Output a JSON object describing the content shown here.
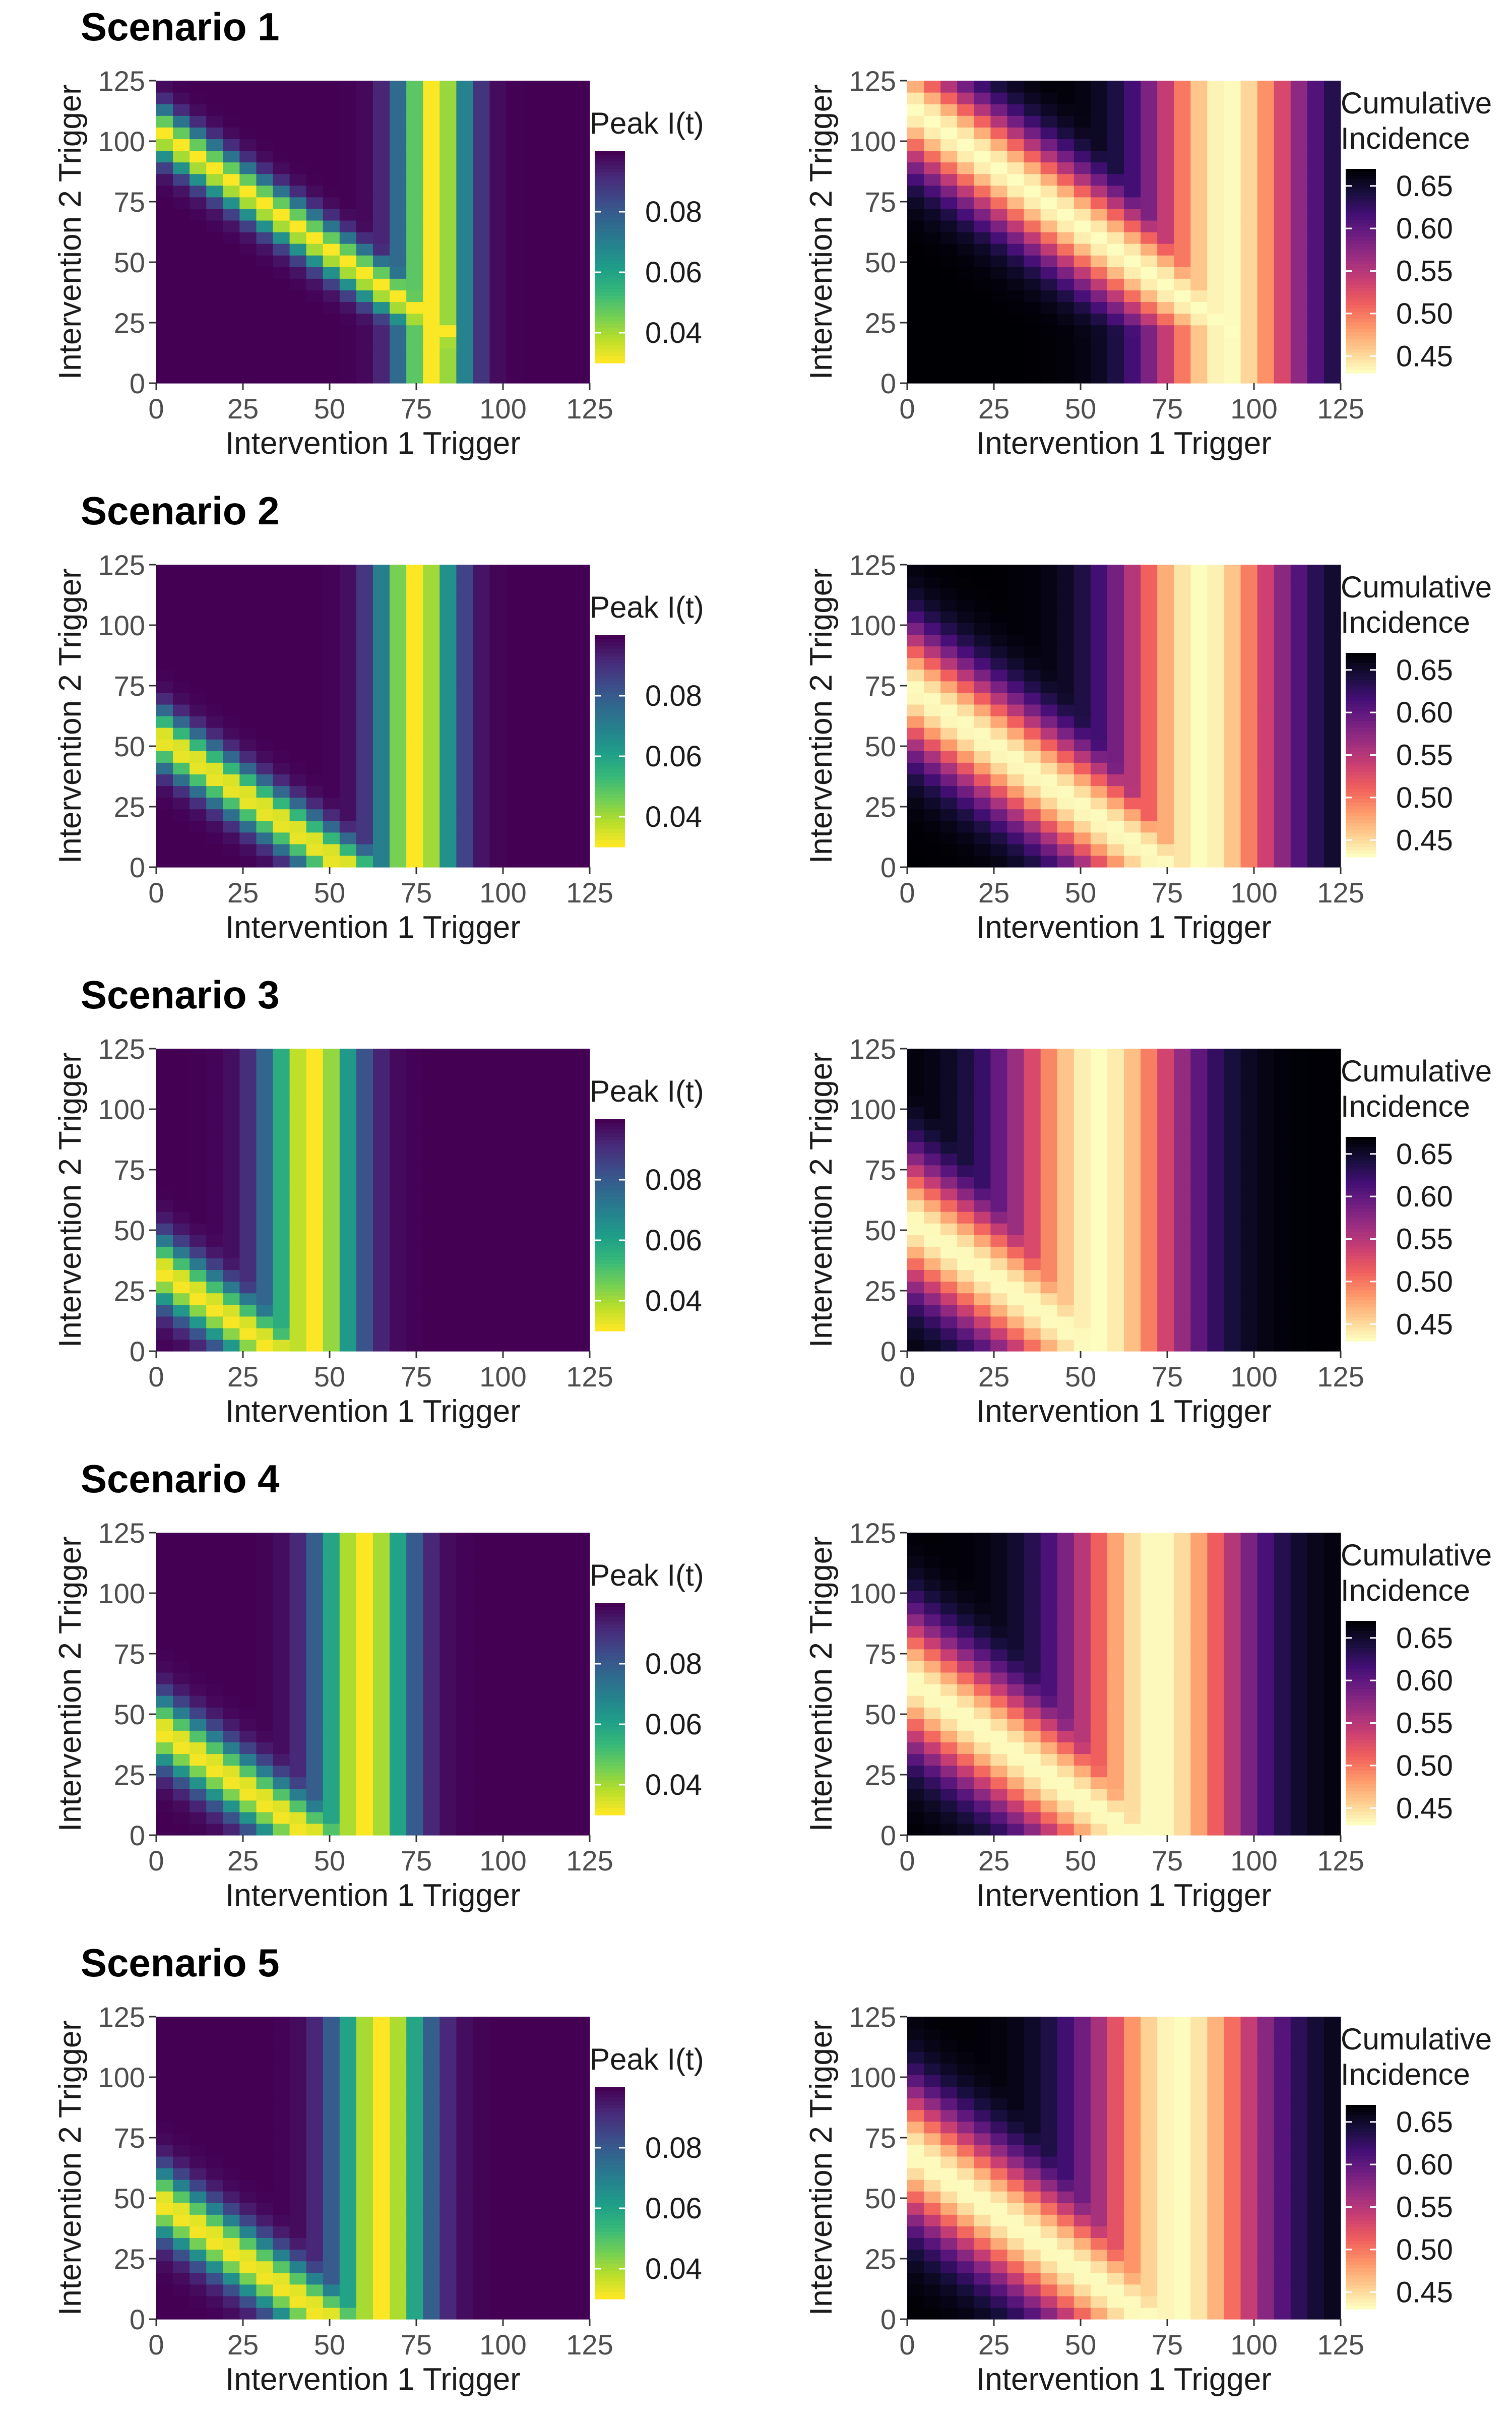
{
  "chart_data": [
    {
      "type": "heatmap",
      "scenario": "Scenario 1",
      "panels": [
        {
          "metric": "peak",
          "colormap": "viridis",
          "legend_title": [
            "Peak I(t)"
          ],
          "legend_ticks": [
            "0.04",
            "0.06",
            "0.08"
          ],
          "range": [
            0.03,
            0.1
          ],
          "vertical_band": 80,
          "diagonal_sum": 105,
          "band_width": 10
        },
        {
          "metric": "cumulative",
          "colormap": "magma",
          "legend_title": [
            "Cumulative",
            "Incidence"
          ],
          "legend_ticks": [
            "0.45",
            "0.50",
            "0.55",
            "0.60",
            "0.65"
          ],
          "range": [
            0.43,
            0.67
          ],
          "vertical_band": 92,
          "diagonal_sum": 115,
          "band_width": 22
        }
      ]
    },
    {
      "type": "heatmap",
      "scenario": "Scenario 2",
      "panels": [
        {
          "metric": "peak",
          "colormap": "viridis",
          "legend_title": [
            "Peak I(t)"
          ],
          "legend_ticks": [
            "0.04",
            "0.06",
            "0.08"
          ],
          "range": [
            0.03,
            0.1
          ],
          "vertical_band": 75,
          "diagonal_sum": 55,
          "band_width": 11
        },
        {
          "metric": "cumulative",
          "colormap": "magma",
          "legend_title": [
            "Cumulative",
            "Incidence"
          ],
          "legend_ticks": [
            "0.45",
            "0.50",
            "0.55",
            "0.60",
            "0.65"
          ],
          "range": [
            0.43,
            0.67
          ],
          "vertical_band": 85,
          "diagonal_sum": 75,
          "band_width": 24
        }
      ]
    },
    {
      "type": "heatmap",
      "scenario": "Scenario 3",
      "panels": [
        {
          "metric": "peak",
          "colormap": "viridis",
          "legend_title": [
            "Peak I(t)"
          ],
          "legend_ticks": [
            "0.04",
            "0.06",
            "0.08"
          ],
          "range": [
            0.03,
            0.1
          ],
          "vertical_band": 45,
          "diagonal_sum": 35,
          "band_width": 13
        },
        {
          "metric": "cumulative",
          "colormap": "magma",
          "legend_title": [
            "Cumulative",
            "Incidence"
          ],
          "legend_ticks": [
            "0.45",
            "0.50",
            "0.55",
            "0.60",
            "0.65"
          ],
          "range": [
            0.43,
            0.67
          ],
          "vertical_band": 55,
          "diagonal_sum": 55,
          "band_width": 26
        }
      ]
    },
    {
      "type": "heatmap",
      "scenario": "Scenario 4",
      "panels": [
        {
          "metric": "peak",
          "colormap": "viridis",
          "legend_title": [
            "Peak I(t)"
          ],
          "legend_ticks": [
            "0.04",
            "0.06",
            "0.08"
          ],
          "range": [
            0.03,
            0.1
          ],
          "vertical_band": 60,
          "diagonal_sum": 45,
          "band_width": 13
        },
        {
          "metric": "cumulative",
          "colormap": "magma",
          "legend_title": [
            "Cumulative",
            "Incidence"
          ],
          "legend_ticks": [
            "0.45",
            "0.50",
            "0.55",
            "0.60",
            "0.65"
          ],
          "range": [
            0.43,
            0.67
          ],
          "vertical_band": 72,
          "diagonal_sum": 65,
          "band_width": 26
        }
      ]
    },
    {
      "type": "heatmap",
      "scenario": "Scenario 5",
      "panels": [
        {
          "metric": "peak",
          "colormap": "viridis",
          "legend_title": [
            "Peak I(t)"
          ],
          "legend_ticks": [
            "0.04",
            "0.06",
            "0.08"
          ],
          "range": [
            0.03,
            0.1
          ],
          "vertical_band": 65,
          "diagonal_sum": 50,
          "band_width": 13
        },
        {
          "metric": "cumulative",
          "colormap": "magma",
          "legend_title": [
            "Cumulative",
            "Incidence"
          ],
          "legend_ticks": [
            "0.45",
            "0.50",
            "0.55",
            "0.60",
            "0.65"
          ],
          "range": [
            0.43,
            0.67
          ],
          "vertical_band": 78,
          "diagonal_sum": 70,
          "band_width": 26
        }
      ]
    }
  ],
  "axes": {
    "xlabel": "Intervention 1 Trigger",
    "ylabel": "Intervention 2 Trigger",
    "xlim": [
      0,
      125
    ],
    "ylim": [
      0,
      125
    ],
    "ticks": [
      "0",
      "25",
      "50",
      "75",
      "100",
      "125"
    ],
    "tick_values": [
      0,
      25,
      50,
      75,
      100,
      125
    ],
    "grid": "off",
    "legend_position": "right"
  },
  "colors": {
    "viridis": [
      "#fde725",
      "#b5de2b",
      "#6ece58",
      "#35b779",
      "#1f9e89",
      "#26828e",
      "#31688e",
      "#3e4989",
      "#482878",
      "#440154"
    ],
    "magma": [
      "#fcfdbf",
      "#feca8d",
      "#fd9668",
      "#f1605d",
      "#cd4071",
      "#9e2f7f",
      "#721f81",
      "#440f76",
      "#180f3d",
      "#000004"
    ]
  }
}
